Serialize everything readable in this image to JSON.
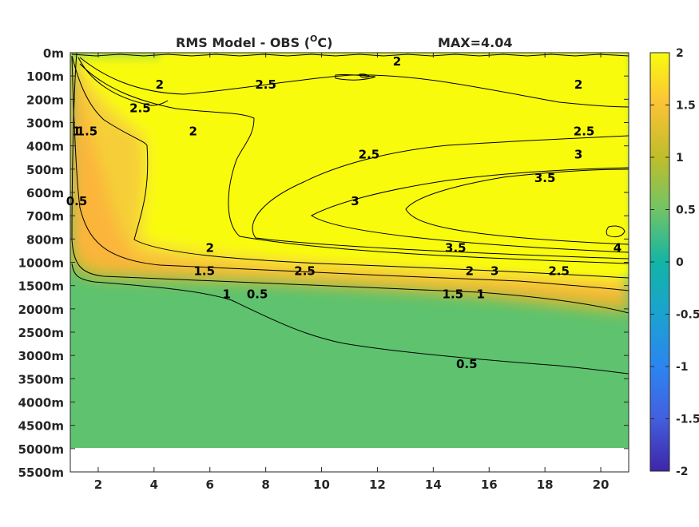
{
  "chart_data": {
    "type": "heatmap",
    "title": "RMS Model - OBS (",
    "title_unit": "O",
    "title_unit_tail": "C)",
    "max_label": "MAX=4.04",
    "xlabel": "",
    "ylabel": "",
    "x_ticks": [
      "2",
      "4",
      "6",
      "8",
      "10",
      "12",
      "14",
      "16",
      "18",
      "20"
    ],
    "x_tick_values": [
      2,
      4,
      6,
      8,
      10,
      12,
      14,
      16,
      18,
      20
    ],
    "xlim": [
      1,
      21
    ],
    "y_ticks": [
      "0m",
      "100m",
      "200m",
      "300m",
      "400m",
      "500m",
      "600m",
      "700m",
      "800m",
      "1000m",
      "1500m",
      "2000m",
      "2500m",
      "3000m",
      "3500m",
      "4000m",
      "4500m",
      "5000m",
      "5500m"
    ],
    "colorbar": {
      "ticks": [
        "2",
        "1.5",
        "1",
        "0.5",
        "0",
        "-0.5",
        "-1",
        "-1.5",
        "-2"
      ],
      "range": [
        -2,
        2
      ],
      "colormap": "parula"
    },
    "contour_labels": [
      {
        "text": "2",
        "x": 4.2,
        "depth": "100m"
      },
      {
        "text": "2",
        "x": 12.7,
        "depth": "0m"
      },
      {
        "text": "2",
        "x": 19.2,
        "depth": "100m"
      },
      {
        "text": "2.5",
        "x": 8.0,
        "depth": "100m"
      },
      {
        "text": "2.5",
        "x": 3.5,
        "depth": "200m"
      },
      {
        "text": "2",
        "x": 5.4,
        "depth": "300m"
      },
      {
        "text": "1.5",
        "x": 1.6,
        "depth": "300m"
      },
      {
        "text": "1",
        "x": 1.1,
        "depth": "300m"
      },
      {
        "text": "0.5",
        "x": 1.1,
        "depth": "600m"
      },
      {
        "text": "2.5",
        "x": 11.7,
        "depth": "400m"
      },
      {
        "text": "3",
        "x": 11.2,
        "depth": "600m"
      },
      {
        "text": "2.5",
        "x": 19.4,
        "depth": "300m"
      },
      {
        "text": "3",
        "x": 19.2,
        "depth": "400m"
      },
      {
        "text": "3.5",
        "x": 18.0,
        "depth": "500m"
      },
      {
        "text": "4",
        "x": 20.6,
        "depth": "800m"
      },
      {
        "text": "3.5",
        "x": 14.8,
        "depth": "800m"
      },
      {
        "text": "3",
        "x": 16.2,
        "depth": "1000m"
      },
      {
        "text": "2.5",
        "x": 18.5,
        "depth": "1000m"
      },
      {
        "text": "2",
        "x": 6.0,
        "depth": "800m"
      },
      {
        "text": "2.5",
        "x": 9.4,
        "depth": "1000m"
      },
      {
        "text": "1.5",
        "x": 5.8,
        "depth": "1000m"
      },
      {
        "text": "1",
        "x": 6.6,
        "depth": "1500m"
      },
      {
        "text": "1.5",
        "x": 14.7,
        "depth": "1500m"
      },
      {
        "text": "2",
        "x": 15.3,
        "depth": "1000m"
      },
      {
        "text": "1",
        "x": 15.7,
        "depth": "1500m"
      },
      {
        "text": "0.5",
        "x": 7.7,
        "depth": "1500m"
      },
      {
        "text": "0.5",
        "x": 15.2,
        "depth": "3000m"
      }
    ],
    "colors": {
      "c_4": "#f9fb0e",
      "c_3": "#f9fb0e",
      "c_2": "#f9fb0e",
      "c_1_75": "#f6cf38",
      "c_1_5": "#fbb53a",
      "c_1_25": "#d7bb2f",
      "c_1": "#b9c028",
      "c_0_75": "#8ac35a",
      "c_0_5": "#5ec26e",
      "c_0_25": "#35bd8c",
      "c_0": "#13b4a5"
    }
  }
}
